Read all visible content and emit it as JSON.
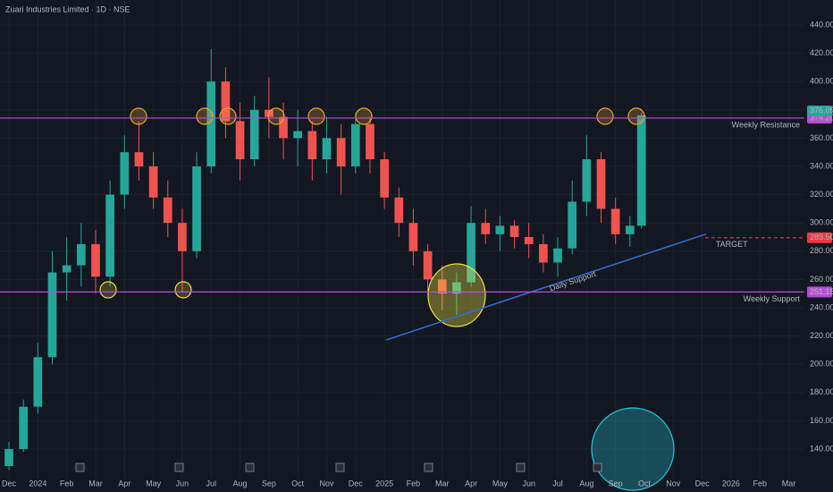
{
  "chart_data": {
    "type": "candlestick",
    "title": "Zuari Industries Limited · 1D · NSE",
    "x": [
      0,
      0.5,
      1,
      1.5,
      2,
      2.5,
      3,
      3.5,
      4,
      4.5,
      5,
      5.5,
      6,
      6.5,
      7,
      7.5,
      8,
      8.5,
      9,
      9.5,
      10,
      10.5,
      11,
      11.5,
      12,
      12.5,
      13,
      13.5,
      14,
      14.5,
      15,
      15.5,
      16,
      16.5,
      17,
      17.5,
      18,
      18.5,
      19,
      19.5,
      20,
      20.5,
      21,
      21.5,
      21.9
    ],
    "open": [
      128,
      140,
      170,
      205,
      265,
      270,
      285,
      262,
      320,
      350,
      340,
      318,
      300,
      280,
      340,
      400,
      372,
      345,
      380,
      375,
      360,
      365,
      345,
      360,
      340,
      370,
      345,
      318,
      300,
      280,
      260,
      250,
      258,
      300,
      292,
      298,
      290,
      285,
      272,
      282,
      315,
      345,
      310,
      292,
      298
    ],
    "high": [
      145,
      175,
      215,
      280,
      290,
      300,
      295,
      330,
      362,
      372,
      350,
      330,
      310,
      350,
      423,
      410,
      385,
      390,
      403,
      385,
      380,
      372,
      375,
      370,
      378,
      375,
      350,
      325,
      310,
      285,
      270,
      265,
      312,
      310,
      305,
      302,
      300,
      292,
      290,
      330,
      362,
      350,
      318,
      305,
      378
    ],
    "low": [
      125,
      138,
      165,
      200,
      245,
      255,
      250,
      255,
      310,
      330,
      310,
      290,
      251,
      275,
      335,
      360,
      330,
      340,
      360,
      345,
      340,
      330,
      335,
      320,
      335,
      335,
      310,
      290,
      270,
      250,
      238,
      235,
      255,
      285,
      280,
      282,
      275,
      265,
      262,
      278,
      305,
      300,
      285,
      283,
      296
    ],
    "close": [
      140,
      170,
      205,
      265,
      270,
      285,
      262,
      320,
      350,
      340,
      318,
      300,
      280,
      340,
      400,
      372,
      345,
      380,
      375,
      360,
      365,
      345,
      360,
      340,
      370,
      345,
      318,
      300,
      280,
      260,
      250,
      258,
      300,
      292,
      298,
      290,
      285,
      272,
      282,
      315,
      345,
      310,
      292,
      298,
      376.05
    ],
    "up_color": "#26a69a",
    "down_color": "#ef5350",
    "xlim": [
      -0.31,
      27.54
    ],
    "xticks": [
      {
        "value": 0,
        "label": "Dec"
      },
      {
        "value": 1,
        "label": "2024"
      },
      {
        "value": 2,
        "label": "Feb"
      },
      {
        "value": 3,
        "label": "Mar"
      },
      {
        "value": 4,
        "label": "Apr"
      },
      {
        "value": 5,
        "label": "May"
      },
      {
        "value": 6,
        "label": "Jun"
      },
      {
        "value": 7,
        "label": "Jul"
      },
      {
        "value": 8,
        "label": "Aug"
      },
      {
        "value": 9,
        "label": "Sep"
      },
      {
        "value": 10,
        "label": "Oct"
      },
      {
        "value": 11,
        "label": "Nov"
      },
      {
        "value": 12,
        "label": "Dec"
      },
      {
        "value": 13,
        "label": "2025"
      },
      {
        "value": 14,
        "label": "Feb"
      },
      {
        "value": 15,
        "label": "Mar"
      },
      {
        "value": 16,
        "label": "Apr"
      },
      {
        "value": 17,
        "label": "May"
      },
      {
        "value": 18,
        "label": "Jun"
      },
      {
        "value": 19,
        "label": "Jul"
      },
      {
        "value": 20,
        "label": "Aug"
      },
      {
        "value": 21,
        "label": "Sep"
      },
      {
        "value": 22,
        "label": "Oct"
      },
      {
        "value": 23,
        "label": "Nov"
      },
      {
        "value": 24,
        "label": "Dec"
      },
      {
        "value": 25,
        "label": "2026"
      },
      {
        "value": 26,
        "label": "Feb"
      },
      {
        "value": 27,
        "label": "Mar"
      }
    ],
    "ylim": [
      118.5,
      457.7
    ],
    "yticks": [
      {
        "value": 140,
        "label": "140.00"
      },
      {
        "value": 160,
        "label": "160.00"
      },
      {
        "value": 180,
        "label": "180.00"
      },
      {
        "value": 200,
        "label": "200.00"
      },
      {
        "value": 220,
        "label": "220.00"
      },
      {
        "value": 240,
        "label": "240.00"
      },
      {
        "value": 260,
        "label": "260.00"
      },
      {
        "value": 280,
        "label": "280.00"
      },
      {
        "value": 300,
        "label": "300.00"
      },
      {
        "value": 320,
        "label": "320.00"
      },
      {
        "value": 340,
        "label": "340.00"
      },
      {
        "value": 360,
        "label": "360.00"
      },
      {
        "value": 380,
        "label": "380.00"
      },
      {
        "value": 400,
        "label": "400.00"
      },
      {
        "value": 420,
        "label": "420.00"
      },
      {
        "value": 440,
        "label": "440.00"
      }
    ],
    "grid": true,
    "last_price": {
      "value": 376.05,
      "label": "376.05",
      "color": "#26a69a"
    },
    "price_lines": [
      {
        "name": "Weekly Resistance",
        "value": 374.2,
        "label": "374.20",
        "color": "#b84dd6"
      },
      {
        "name": "Weekly Support",
        "value": 251.15,
        "label": "251.15",
        "color": "#b84dd6"
      }
    ],
    "target": {
      "name": "TARGET",
      "value": 289.5,
      "label": "289.50",
      "x": [
        24.1,
        27.54
      ],
      "color": "#f23645"
    },
    "trendline": {
      "name": "Daily Support",
      "x": [
        13.06,
        24.13
      ],
      "values": [
        217.2,
        292.1
      ],
      "color": "#2f6fdb"
    }
  }
}
